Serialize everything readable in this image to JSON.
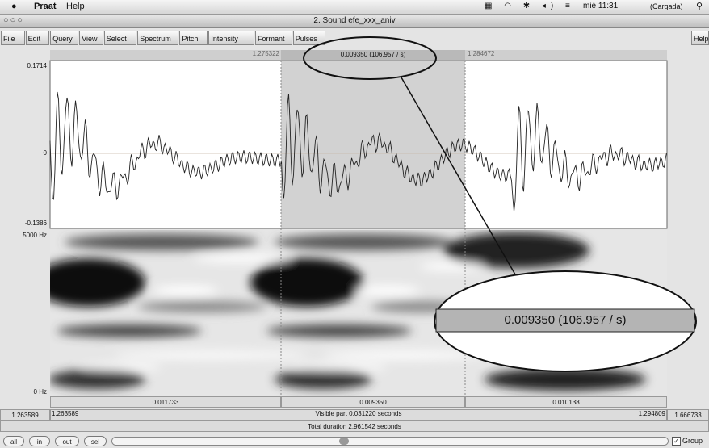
{
  "menubar": {
    "app": "Praat",
    "items": [
      "Help"
    ],
    "clock": "mié 11:31",
    "battery": "(Cargada)"
  },
  "window": {
    "title": "2. Sound efe_xxx_aniv"
  },
  "menus": [
    "File",
    "Edit",
    "Query",
    "View",
    "Select",
    "Spectrum",
    "Pitch",
    "Intensity",
    "Formant",
    "Pulses"
  ],
  "help_menu": "Help",
  "selection": {
    "start": "1.275322",
    "duration": "0.009350 (106.957 / s)",
    "end": "1.284672"
  },
  "waveform": {
    "ymax": "0.1714",
    "zero": "0",
    "ymin": "-0.1386"
  },
  "spectrogram": {
    "fmax": "5000 Hz",
    "fmin": "0 Hz"
  },
  "intervals": [
    "0.011733",
    "0.009350",
    "0.010138"
  ],
  "time_row": {
    "window_start": "1.263589",
    "visible_start": "1.263589",
    "visible": "Visible part 0.031220 seconds",
    "visible_end": "1.294809",
    "window_end": "1.666733"
  },
  "total": "Total duration 2.961542 seconds",
  "buttons": [
    "all",
    "in",
    "out",
    "sel"
  ],
  "group": "Group",
  "callout": "0.009350 (106.957 / s)"
}
